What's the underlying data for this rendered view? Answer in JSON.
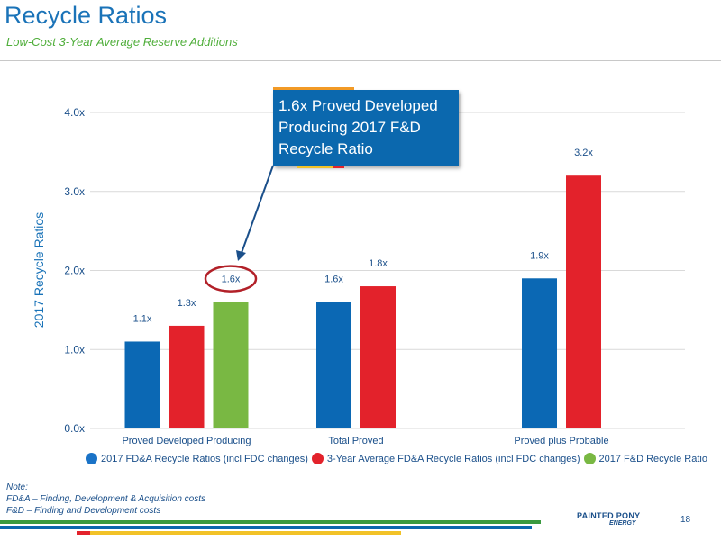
{
  "header": {
    "title": "Recycle Ratios",
    "subtitle": "Low-Cost 3-Year Average Reserve Additions"
  },
  "callout": {
    "text": "1.6x Proved Developed Producing 2017 F&D Recycle Ratio"
  },
  "chart_data": {
    "type": "bar",
    "categories": [
      "Proved Developed Producing",
      "Total Proved",
      "Proved plus Probable"
    ],
    "series": [
      {
        "name": "2017 FD&A Recycle Ratios (incl FDC changes)",
        "color": "#0b68b4",
        "values": [
          1.1,
          1.6,
          1.9
        ],
        "labels": [
          "1.1x",
          "1.6x",
          "1.9x"
        ]
      },
      {
        "name": "3-Year Average FD&A Recycle Ratios (incl FDC changes)",
        "color": "#e3222b",
        "values": [
          1.3,
          1.8,
          3.2
        ],
        "labels": [
          "1.3x",
          "1.8x",
          "3.2x"
        ]
      },
      {
        "name": "2017 F&D Recycle Ratio",
        "color": "#79b843",
        "values": [
          1.6,
          null,
          null
        ],
        "labels": [
          "1.6x",
          null,
          null
        ]
      }
    ],
    "ylabel": "2017 Recycle Ratios",
    "yticks": [
      "0.0x",
      "1.0x",
      "2.0x",
      "3.0x",
      "4.0x"
    ],
    "ytick_values": [
      0,
      1,
      2,
      3,
      4
    ],
    "ylim": [
      0,
      4
    ],
    "grid": true,
    "legend_position": "bottom",
    "highlighted_label": "1.6x"
  },
  "note": {
    "heading": "Note:",
    "lines": [
      "FD&A – Finding, Development & Acquisition costs",
      "F&D – Finding and Development costs"
    ]
  },
  "footer": {
    "logo": "PAINTED PONY",
    "logo_sub": "ENERGY",
    "page": "18"
  },
  "colors": {
    "brand_blue": "#1a73b8",
    "brand_green": "#4fae3a",
    "highlight_circle": "#b22028"
  }
}
